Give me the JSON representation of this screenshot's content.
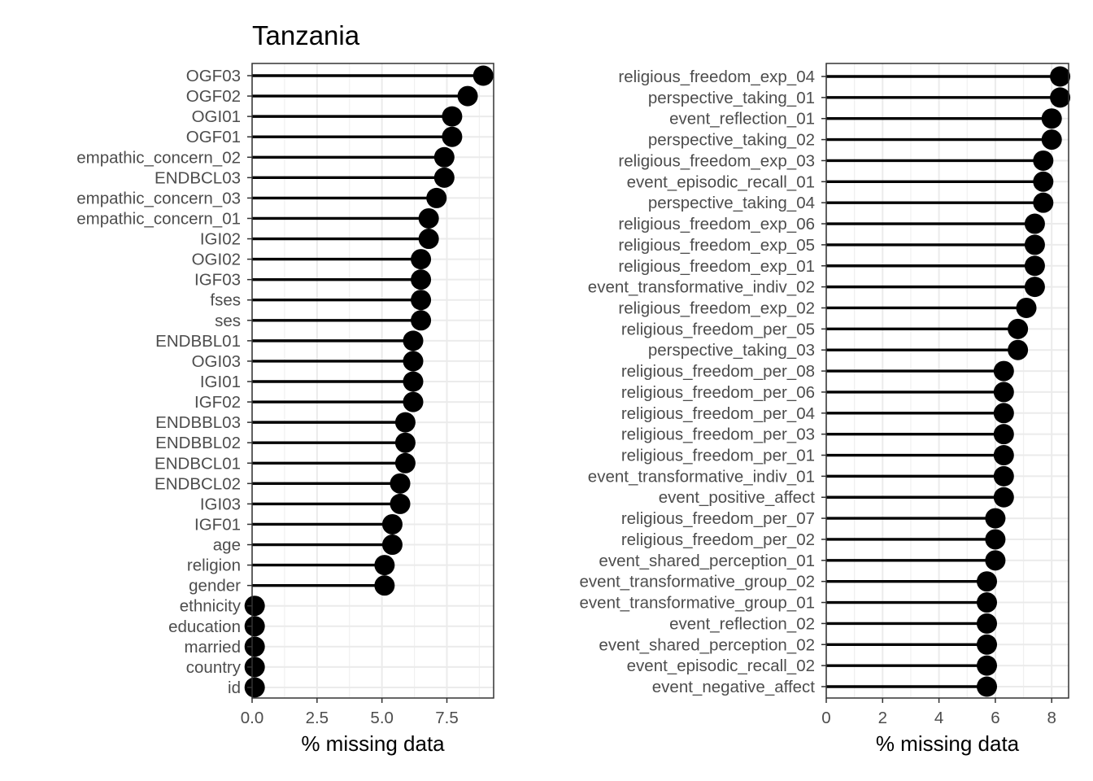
{
  "chart_data": [
    {
      "type": "lollipop",
      "title": "Tanzania",
      "xlabel": "% missing data",
      "ylabel": "",
      "xlim": [
        0,
        9.3
      ],
      "xticks": [
        0,
        2.5,
        5,
        7.5
      ],
      "xtick_labels": [
        "0.0",
        "2.5",
        "5.0",
        "7.5"
      ],
      "grid": true,
      "categories": [
        "OGF03",
        "OGF02",
        "OGI01",
        "OGF01",
        "empathic_concern_02",
        "ENDBCL03",
        "empathic_concern_03",
        "empathic_concern_01",
        "IGI02",
        "OGI02",
        "IGF03",
        "fses",
        "ses",
        "ENDBBL01",
        "OGI03",
        "IGI01",
        "IGF02",
        "ENDBBL03",
        "ENDBBL02",
        "ENDBCL01",
        "ENDBCL02",
        "IGI03",
        "IGF01",
        "age",
        "religion",
        "gender",
        "ethnicity",
        "education",
        "married",
        "country",
        "id"
      ],
      "values": [
        8.9,
        8.3,
        7.7,
        7.7,
        7.4,
        7.4,
        7.1,
        6.8,
        6.8,
        6.5,
        6.5,
        6.5,
        6.5,
        6.2,
        6.2,
        6.2,
        6.2,
        5.9,
        5.9,
        5.9,
        5.7,
        5.7,
        5.4,
        5.4,
        5.1,
        5.1,
        0.1,
        0.1,
        0.1,
        0.1,
        0.1
      ]
    },
    {
      "type": "lollipop",
      "title": "",
      "xlabel": "% missing data",
      "ylabel": "",
      "xlim": [
        0,
        8.6
      ],
      "xticks": [
        0,
        2,
        4,
        6,
        8
      ],
      "xtick_labels": [
        "0",
        "2",
        "4",
        "6",
        "8"
      ],
      "grid": true,
      "categories": [
        "religious_freedom_exp_04",
        "perspective_taking_01",
        "event_reflection_01",
        "perspective_taking_02",
        "religious_freedom_exp_03",
        "event_episodic_recall_01",
        "perspective_taking_04",
        "religious_freedom_exp_06",
        "religious_freedom_exp_05",
        "religious_freedom_exp_01",
        "event_transformative_indiv_02",
        "religious_freedom_exp_02",
        "religious_freedom_per_05",
        "perspective_taking_03",
        "religious_freedom_per_08",
        "religious_freedom_per_06",
        "religious_freedom_per_04",
        "religious_freedom_per_03",
        "religious_freedom_per_01",
        "event_transformative_indiv_01",
        "event_positive_affect",
        "religious_freedom_per_07",
        "religious_freedom_per_02",
        "event_shared_perception_01",
        "event_transformative_group_02",
        "event_transformative_group_01",
        "event_reflection_02",
        "event_shared_perception_02",
        "event_episodic_recall_02",
        "event_negative_affect"
      ],
      "values": [
        8.3,
        8.3,
        8.0,
        8.0,
        7.7,
        7.7,
        7.7,
        7.4,
        7.4,
        7.4,
        7.4,
        7.1,
        6.8,
        6.8,
        6.3,
        6.3,
        6.3,
        6.3,
        6.3,
        6.3,
        6.3,
        6.0,
        6.0,
        6.0,
        5.7,
        5.7,
        5.7,
        5.7,
        5.7,
        5.7
      ]
    }
  ]
}
